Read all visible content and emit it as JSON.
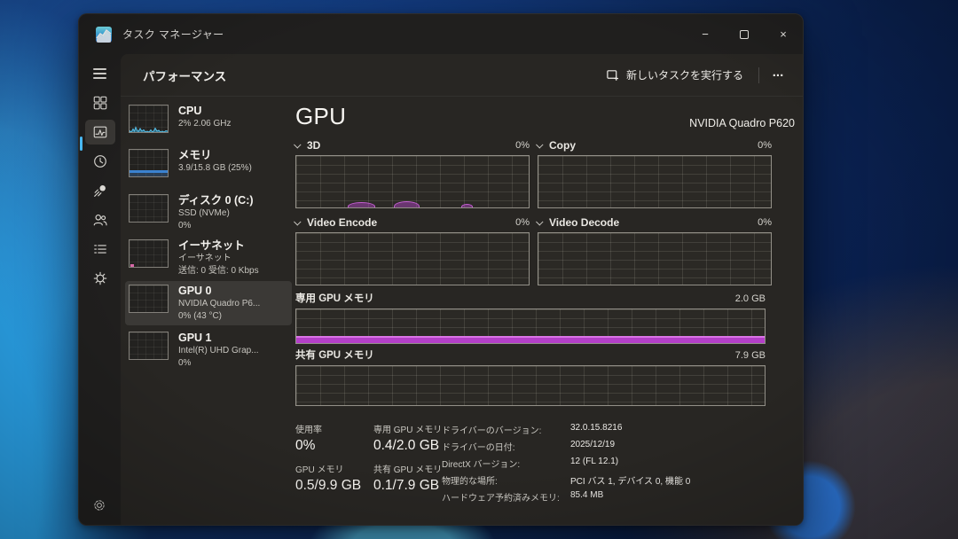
{
  "titlebar": {
    "app_title": "タスク マネージャー",
    "minimize_glyph": "−",
    "close_glyph": "×"
  },
  "header": {
    "title": "パフォーマンス",
    "run_new_task_label": "新しいタスクを実行する",
    "more_label": "..."
  },
  "sidebar": {
    "icons": [
      "hamburger-menu",
      "processes",
      "performance",
      "app-history",
      "startup-apps",
      "users",
      "details",
      "services",
      "settings"
    ],
    "selected": "performance"
  },
  "perf_list": {
    "items": [
      {
        "title": "CPU",
        "line1": "2% 2.06 GHz",
        "line2": ""
      },
      {
        "title": "メモリ",
        "line1": "3.9/15.8 GB (25%)",
        "line2": ""
      },
      {
        "title": "ディスク 0 (C:)",
        "line1": "SSD (NVMe)",
        "line2": "0%"
      },
      {
        "title": "イーサネット",
        "line1": "イーサネット",
        "line2": "送信: 0 受信: 0 Kbps"
      },
      {
        "title": "GPU 0",
        "line1": "NVIDIA Quadro P6...",
        "line2": "0% (43 °C)"
      },
      {
        "title": "GPU 1",
        "line1": "Intel(R) UHD Grap...",
        "line2": "0%"
      }
    ]
  },
  "gpu": {
    "page_title": "GPU",
    "device_name": "NVIDIA Quadro P620",
    "engine_charts": [
      {
        "name": "3D",
        "value": "0%"
      },
      {
        "name": "Copy",
        "value": "0%"
      },
      {
        "name": "Video Encode",
        "value": "0%"
      },
      {
        "name": "Video Decode",
        "value": "0%"
      }
    ],
    "memory_charts": [
      {
        "name": "専用 GPU メモリ",
        "capacity": "2.0 GB",
        "fill_percent": 22
      },
      {
        "name": "共有 GPU メモリ",
        "capacity": "7.9 GB",
        "fill_percent": 1
      }
    ],
    "stats": [
      {
        "label": "使用率",
        "value": "0%"
      },
      {
        "label": "専用 GPU メモリ",
        "value": "0.4/2.0 GB"
      },
      {
        "label": "GPU メモリ",
        "value": "0.5/9.9 GB"
      },
      {
        "label": "共有 GPU メモリ",
        "value": "0.1/7.9 GB"
      }
    ],
    "details": [
      {
        "label": "ドライバーのバージョン:",
        "value": "32.0.15.8216"
      },
      {
        "label": "ドライバーの日付:",
        "value": "2025/12/19"
      },
      {
        "label": "DirectX バージョン:",
        "value": "12 (FL 12.1)"
      },
      {
        "label": "物理的な場所:",
        "value": "PCI バス 1, デバイス 0, 機能 0"
      },
      {
        "label": "ハードウェア予約済みメモリ:",
        "value": "85.4 MB"
      }
    ]
  },
  "colors": {
    "accent_blue": "#4cc2ff",
    "gpu_magenta": "#b43fc8",
    "memory_blue": "#3b82d0",
    "cpu_cyan": "#45b8e8"
  }
}
